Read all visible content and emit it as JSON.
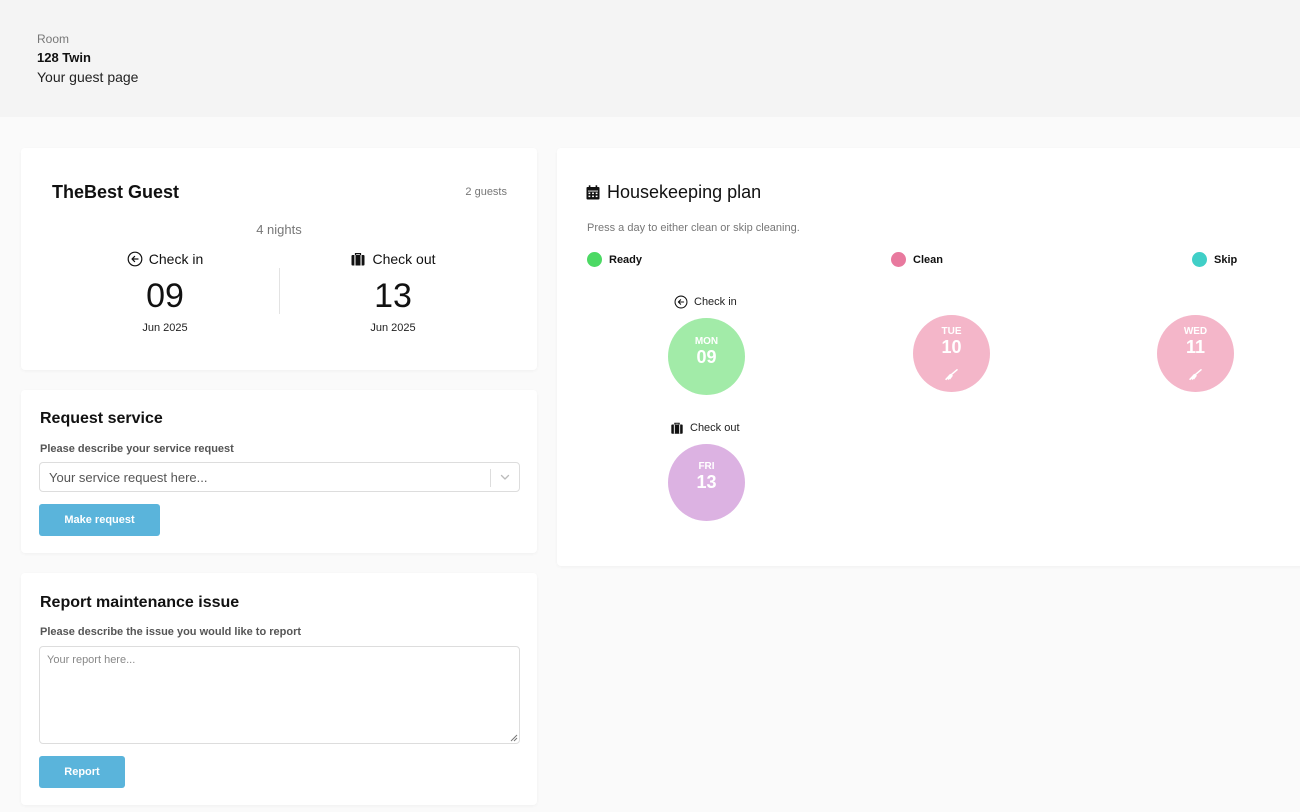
{
  "header": {
    "label": "Room",
    "room": "128 Twin",
    "subtitle": "Your guest page"
  },
  "guest": {
    "name": "TheBest Guest",
    "guests": "2 guests",
    "nights": "4 nights",
    "check_in": {
      "label": "Check in",
      "day": "09",
      "month": "Jun 2025"
    },
    "check_out": {
      "label": "Check out",
      "day": "13",
      "month": "Jun 2025"
    }
  },
  "service": {
    "title": "Request service",
    "label": "Please describe your service request",
    "placeholder": "Your service request here...",
    "button": "Make request"
  },
  "report": {
    "title": "Report maintenance issue",
    "label": "Please describe the issue you would like to report",
    "placeholder": "Your report here...",
    "button": "Report"
  },
  "housekeeping": {
    "title": "Housekeeping plan",
    "subtitle": "Press a day to either clean or skip cleaning.",
    "legend": [
      {
        "label": "Ready",
        "color": "#4cd964"
      },
      {
        "label": "Clean",
        "color": "#e8799e"
      },
      {
        "label": "Skip",
        "color": "#40cfc7"
      }
    ],
    "days": [
      {
        "dow": "MON",
        "num": "09",
        "caption": "Check in",
        "color": "#a2eba8",
        "icon": "arrow-left-circle-icon"
      },
      {
        "dow": "TUE",
        "num": "10",
        "caption": "",
        "color": "#f4b6c9",
        "icon": "broom-icon"
      },
      {
        "dow": "WED",
        "num": "11",
        "caption": "",
        "color": "#f4b6c9",
        "icon": "broom-icon"
      },
      {
        "dow": "FRI",
        "num": "13",
        "caption": "Check out",
        "color": "#dcb2e2",
        "icon": "suitcase-icon"
      }
    ]
  }
}
